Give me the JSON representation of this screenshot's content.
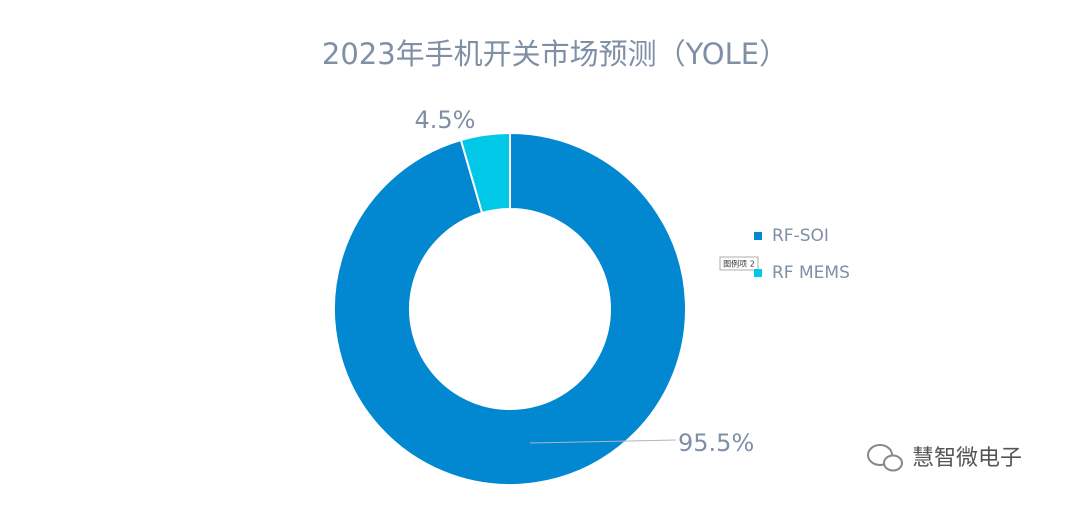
{
  "chart_data": {
    "type": "donut",
    "title": "2023年手机开关市场预测（YOLE）",
    "categories": [
      "RF-SOI",
      "RF MEMS"
    ],
    "values": [
      95.5,
      4.5
    ],
    "value_labels": [
      "95.5%",
      "4.5%"
    ],
    "colors": [
      "#0288d1",
      "#00c8e6"
    ],
    "legend": "right"
  },
  "tooltip": "图例项 2",
  "watermark": "慧智微电子"
}
